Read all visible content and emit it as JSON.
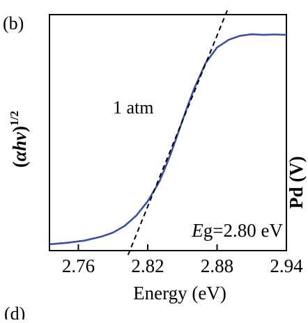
{
  "panels": {
    "current_label": "(b)",
    "next_label": "(d)"
  },
  "chart_data": {
    "type": "line",
    "title": "",
    "xlabel": "Energy (eV)",
    "ylabel": "(αhν)^1/2",
    "xlim": [
      2.735,
      2.94
    ],
    "ylim": [
      0,
      1
    ],
    "x_ticks": [
      2.76,
      2.82,
      2.88,
      2.94
    ],
    "x_tick_labels": [
      "2.76",
      "2.82",
      "2.88",
      "2.94"
    ],
    "y_ticks": [],
    "grid": false,
    "annotations": {
      "condition": "1 atm",
      "bandgap_prefix": "E",
      "bandgap_suffix": "g=2.80 eV"
    },
    "series": [
      {
        "style": "solid",
        "color": "#3b4fa8",
        "x": [
          2.735,
          2.75,
          2.765,
          2.78,
          2.79,
          2.8,
          2.81,
          2.82,
          2.83,
          2.835,
          2.84,
          2.845,
          2.85,
          2.855,
          2.86,
          2.87,
          2.88,
          2.89,
          2.9,
          2.91,
          2.92,
          2.93,
          2.94
        ],
        "y": [
          0.01,
          0.017,
          0.027,
          0.046,
          0.065,
          0.096,
          0.144,
          0.212,
          0.304,
          0.368,
          0.436,
          0.512,
          0.59,
          0.666,
          0.738,
          0.86,
          0.934,
          0.97,
          0.989,
          0.996,
          0.993,
          0.995,
          0.993
        ]
      },
      {
        "style": "dashed",
        "color": "#000000",
        "x": [
          2.803,
          2.889
        ],
        "y": [
          -0.04,
          1.11
        ]
      }
    ]
  },
  "right_panel_fragment": {
    "ylabel_partial": "Pd (V)"
  }
}
